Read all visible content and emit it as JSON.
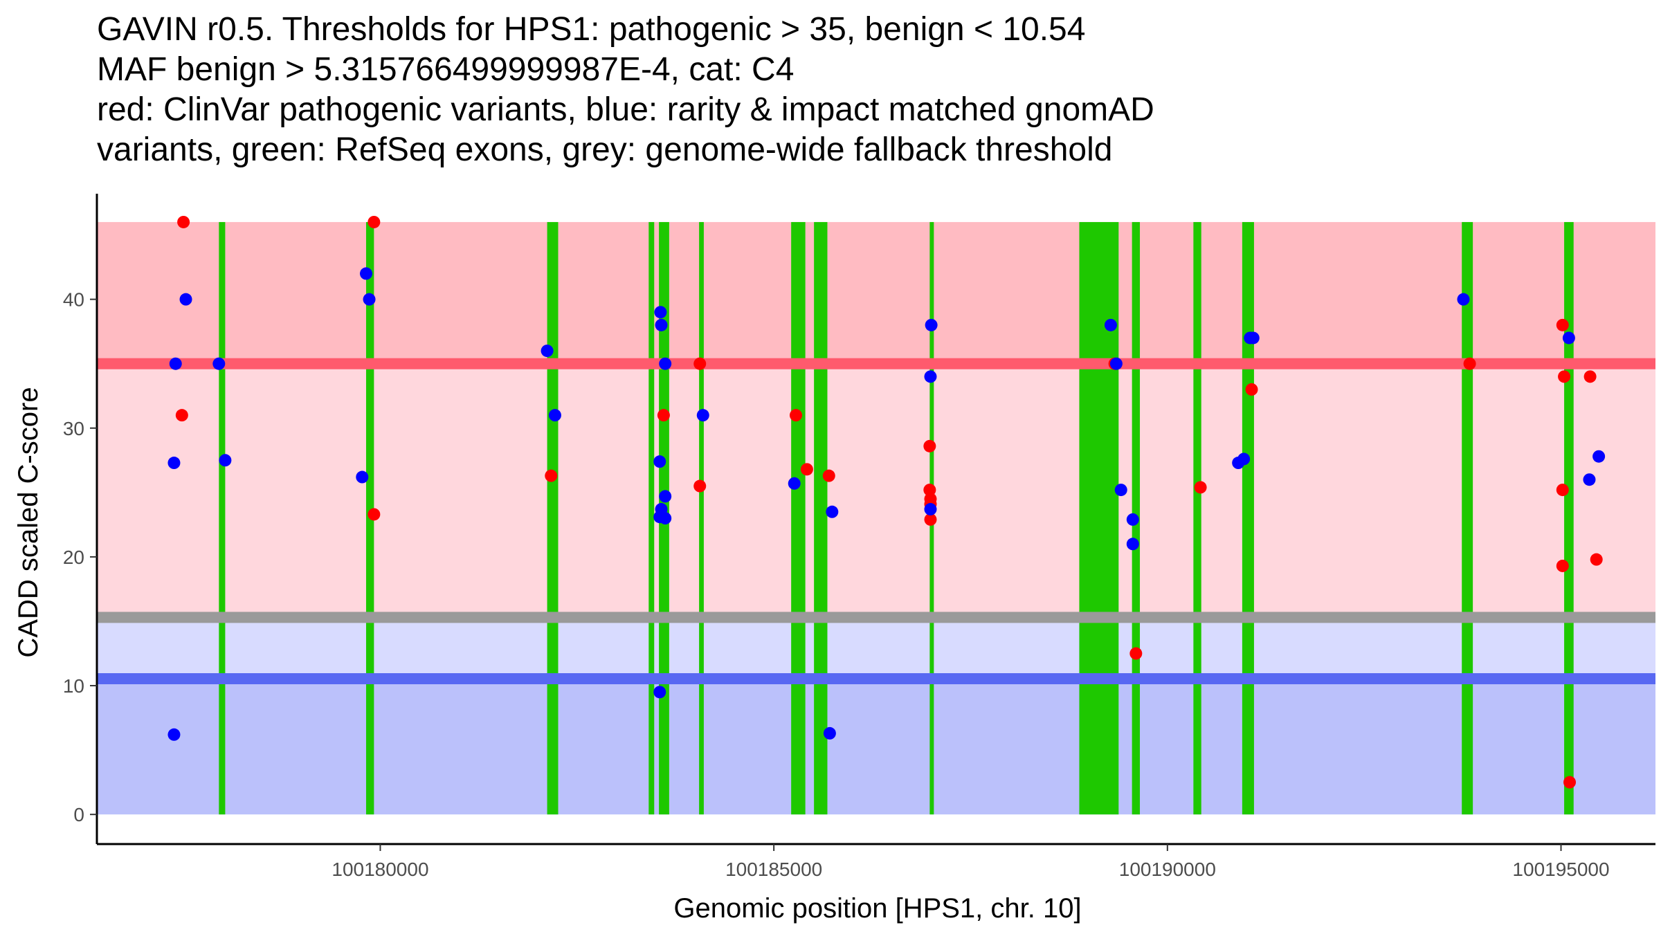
{
  "chart_data": {
    "type": "scatter",
    "title_lines": [
      "GAVIN r0.5. Thresholds for HPS1: pathogenic > 35, benign < 10.54",
      "MAF benign > 5.315766499999987E-4, cat: C4",
      "red: ClinVar pathogenic variants, blue: rarity & impact matched gnomAD",
      "variants, green: RefSeq exons, grey: genome-wide fallback threshold"
    ],
    "xlabel": "Genomic position [HPS1, chr. 10]",
    "ylabel": "CADD scaled C-score",
    "xlim": [
      100176400,
      100196200
    ],
    "ylim": [
      -2.3,
      48.2
    ],
    "x_ticks": [
      100180000,
      100185000,
      100190000,
      100195000
    ],
    "y_ticks": [
      0,
      10,
      20,
      30,
      40
    ],
    "grid": false,
    "colors": {
      "pathogenic_zone": "#ffbbc2",
      "mid_zone": "#ffd7dd",
      "upper_benign_zone": "#d8dbff",
      "benign_zone": "#bbc1fb",
      "pathogenic_line": "#ff5a6d",
      "benign_line": "#5868f2",
      "fallback_line": "#9a9a9a",
      "exon": "#1ec800",
      "clinvar": "#ff0000",
      "gnomad": "#0000ff"
    },
    "zones": {
      "pathogenic": [
        35,
        46
      ],
      "intermediate": [
        15.3,
        35
      ],
      "benign_upper": [
        10.54,
        15.3
      ],
      "benign": [
        0,
        10.54
      ]
    },
    "thresholds": {
      "pathogenic": 35,
      "benign": 10.54,
      "genome_wide_fallback": 15.3
    },
    "exons": [
      [
        100177950,
        100178030
      ],
      [
        100179820,
        100179920
      ],
      [
        100182120,
        100182260
      ],
      [
        100183410,
        100183480
      ],
      [
        100183540,
        100183670
      ],
      [
        100184050,
        100184110
      ],
      [
        100185220,
        100185400
      ],
      [
        100185510,
        100185680
      ],
      [
        100186980,
        100187030
      ],
      [
        100188880,
        100189380
      ],
      [
        100189550,
        100189650
      ],
      [
        100190330,
        100190430
      ],
      [
        100190950,
        100191100
      ],
      [
        100193740,
        100193880
      ],
      [
        100195040,
        100195160
      ]
    ],
    "series": [
      {
        "name": "ClinVar pathogenic variants",
        "color": "#ff0000",
        "points": [
          [
            100177500,
            46
          ],
          [
            100177480,
            31
          ],
          [
            100179920,
            46
          ],
          [
            100179920,
            23.3
          ],
          [
            100182170,
            26.3
          ],
          [
            100183600,
            31
          ],
          [
            100184060,
            35
          ],
          [
            100184060,
            25.5
          ],
          [
            100185280,
            31
          ],
          [
            100185420,
            26.8
          ],
          [
            100185700,
            26.3
          ],
          [
            100186980,
            28.6
          ],
          [
            100186980,
            25.2
          ],
          [
            100186990,
            24.5
          ],
          [
            100186990,
            24.1
          ],
          [
            100186990,
            22.9
          ],
          [
            100189330,
            35
          ],
          [
            100189600,
            12.5
          ],
          [
            100190420,
            25.4
          ],
          [
            100191070,
            33
          ],
          [
            100193840,
            35
          ],
          [
            100195020,
            38
          ],
          [
            100195040,
            34
          ],
          [
            100195020,
            25.2
          ],
          [
            100195020,
            19.3
          ],
          [
            100195370,
            34
          ],
          [
            100195450,
            19.8
          ],
          [
            100195110,
            2.5
          ]
        ]
      },
      {
        "name": "rarity & impact matched gnomAD variants",
        "color": "#0000ff",
        "points": [
          [
            100177530,
            40
          ],
          [
            100177400,
            35
          ],
          [
            100177380,
            27.3
          ],
          [
            100177380,
            6.2
          ],
          [
            100177950,
            35
          ],
          [
            100178030,
            27.5
          ],
          [
            100179820,
            42
          ],
          [
            100179860,
            40
          ],
          [
            100179770,
            26.2
          ],
          [
            100182120,
            36
          ],
          [
            100182220,
            31
          ],
          [
            100183560,
            39
          ],
          [
            100183570,
            38
          ],
          [
            100183620,
            35
          ],
          [
            100183550,
            27.4
          ],
          [
            100183620,
            24.7
          ],
          [
            100183570,
            23.7
          ],
          [
            100183550,
            23.1
          ],
          [
            100183620,
            23
          ],
          [
            100183550,
            9.5
          ],
          [
            100184100,
            31
          ],
          [
            100185260,
            25.7
          ],
          [
            100185740,
            23.5
          ],
          [
            100185710,
            6.3
          ],
          [
            100187000,
            38
          ],
          [
            100186990,
            34
          ],
          [
            100186990,
            23.7
          ],
          [
            100189280,
            38
          ],
          [
            100189350,
            35
          ],
          [
            100189410,
            25.2
          ],
          [
            100189560,
            22.9
          ],
          [
            100189560,
            21
          ],
          [
            100190900,
            27.3
          ],
          [
            100190970,
            27.6
          ],
          [
            100191050,
            37
          ],
          [
            100191090,
            37
          ],
          [
            100193760,
            40
          ],
          [
            100195100,
            37
          ],
          [
            100195360,
            26
          ],
          [
            100195480,
            27.8
          ]
        ]
      }
    ]
  }
}
